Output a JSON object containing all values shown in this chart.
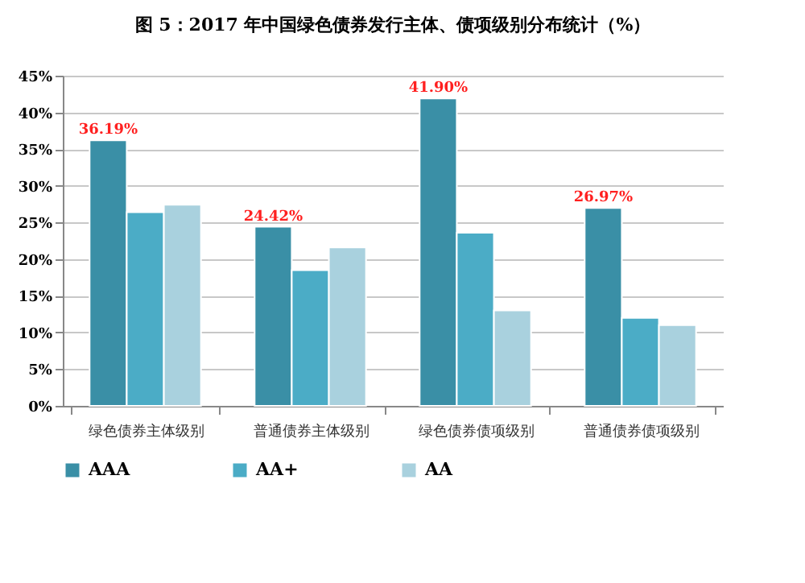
{
  "chart_data": {
    "type": "bar",
    "title": "图 5：2017 年中国绿色债券发行主体、债项级别分布统计（%）",
    "categories": [
      "绿色债券主体级别",
      "普通债券主体级别",
      "绿色债券债项级别",
      "普通债券债项级别"
    ],
    "series": [
      {
        "name": "AAA",
        "color": "#3a8fa6",
        "values": [
          36.19,
          24.42,
          41.9,
          26.97
        ],
        "value_labels": [
          "36.19%",
          "24.42%",
          "41.90%",
          "26.97%"
        ]
      },
      {
        "name": "AA+",
        "color": "#4bacc6",
        "values": [
          26.4,
          18.5,
          23.6,
          12
        ]
      },
      {
        "name": "AA",
        "color": "#a9d1de",
        "values": [
          27.4,
          21.6,
          13,
          11
        ]
      }
    ],
    "ylim": [
      0,
      45
    ],
    "yticks": [
      {
        "value": 0,
        "label": "0%"
      },
      {
        "value": 5,
        "label": "5%"
      },
      {
        "value": 10,
        "label": "10%"
      },
      {
        "value": 15,
        "label": "15%"
      },
      {
        "value": 20,
        "label": "20%"
      },
      {
        "value": 25,
        "label": "25%"
      },
      {
        "value": 30,
        "label": "30%"
      },
      {
        "value": 35,
        "label": "35%"
      },
      {
        "value": 40,
        "label": "40%"
      },
      {
        "value": 45,
        "label": "45%"
      }
    ],
    "grid": "y",
    "legend": "bottom"
  }
}
